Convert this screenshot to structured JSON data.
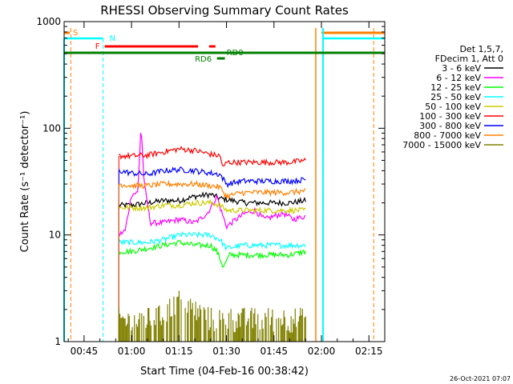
{
  "chart_data": {
    "type": "line",
    "title": "RHESSI Observing Summary Count Rates",
    "xlabel": "Start Time (04-Feb-16 00:38:42)",
    "ylabel": "Count Rate (s⁻¹ detector⁻¹)",
    "y_scale": "log",
    "ylim": [
      1,
      1000
    ],
    "xlim_minutes": [
      38.7,
      140
    ],
    "x_ticks": [
      {
        "m": 45,
        "label": "00:45"
      },
      {
        "m": 60,
        "label": "01:00"
      },
      {
        "m": 75,
        "label": "01:15"
      },
      {
        "m": 90,
        "label": "01:30"
      },
      {
        "m": 105,
        "label": "01:45"
      },
      {
        "m": 120,
        "label": "02:00"
      },
      {
        "m": 135,
        "label": "02:15"
      }
    ],
    "y_ticks": [
      {
        "v": 1,
        "label": "1"
      },
      {
        "v": 10,
        "label": "10"
      },
      {
        "v": 100,
        "label": "100"
      },
      {
        "v": 1000,
        "label": "1000"
      }
    ],
    "legend_header": [
      "Det 1,5,7,",
      "FDecim 1, Att 0"
    ],
    "legend_position": "right",
    "series": [
      {
        "name": "3 - 6 keV",
        "color": "#000000",
        "points": [
          [
            56,
            19
          ],
          [
            60,
            19
          ],
          [
            65,
            20
          ],
          [
            70,
            21
          ],
          [
            75,
            21
          ],
          [
            80,
            23
          ],
          [
            85,
            24
          ],
          [
            88,
            22
          ],
          [
            92,
            21
          ],
          [
            96,
            20
          ],
          [
            100,
            20
          ],
          [
            105,
            20
          ],
          [
            110,
            20
          ],
          [
            115,
            21
          ]
        ]
      },
      {
        "name": "6 - 12 keV",
        "color": "#ff00ff",
        "points": [
          [
            56,
            10
          ],
          [
            58,
            11
          ],
          [
            60,
            24
          ],
          [
            62,
            25
          ],
          [
            63,
            108
          ],
          [
            64,
            30
          ],
          [
            66,
            13
          ],
          [
            70,
            13
          ],
          [
            75,
            14
          ],
          [
            80,
            13
          ],
          [
            84,
            16
          ],
          [
            87,
            23
          ],
          [
            88,
            18
          ],
          [
            90,
            12
          ],
          [
            93,
            14
          ],
          [
            96,
            16
          ],
          [
            99,
            17
          ],
          [
            102,
            14
          ],
          [
            105,
            15
          ],
          [
            108,
            16
          ],
          [
            111,
            14
          ],
          [
            115,
            15
          ]
        ]
      },
      {
        "name": "12 - 25 keV",
        "color": "#00ff00",
        "points": [
          [
            56,
            7
          ],
          [
            60,
            7
          ],
          [
            65,
            7.5
          ],
          [
            70,
            8
          ],
          [
            75,
            8.5
          ],
          [
            80,
            8
          ],
          [
            85,
            8
          ],
          [
            87,
            7
          ],
          [
            89,
            5
          ],
          [
            91,
            6.5
          ],
          [
            95,
            6.5
          ],
          [
            100,
            6.5
          ],
          [
            105,
            6.5
          ],
          [
            110,
            6.5
          ],
          [
            115,
            7
          ]
        ]
      },
      {
        "name": "25 - 50 keV",
        "color": "#00ffff",
        "points": [
          [
            56,
            8.5
          ],
          [
            60,
            8.5
          ],
          [
            65,
            8.5
          ],
          [
            70,
            9
          ],
          [
            75,
            10
          ],
          [
            80,
            10
          ],
          [
            85,
            10
          ],
          [
            88,
            9
          ],
          [
            90,
            7.5
          ],
          [
            95,
            8
          ],
          [
            100,
            8
          ],
          [
            105,
            8
          ],
          [
            110,
            8
          ],
          [
            115,
            8
          ]
        ]
      },
      {
        "name": "50 - 100 keV",
        "color": "#cccc00",
        "points": [
          [
            56,
            18
          ],
          [
            60,
            18
          ],
          [
            65,
            18
          ],
          [
            70,
            19
          ],
          [
            75,
            19
          ],
          [
            80,
            20
          ],
          [
            85,
            20
          ],
          [
            88,
            19
          ],
          [
            90,
            17
          ],
          [
            95,
            17
          ],
          [
            100,
            17
          ],
          [
            105,
            17
          ],
          [
            110,
            17
          ],
          [
            115,
            17
          ]
        ]
      },
      {
        "name": "100 - 300 keV",
        "color": "#ff0000",
        "points": [
          [
            56,
            55
          ],
          [
            60,
            55
          ],
          [
            65,
            56
          ],
          [
            70,
            60
          ],
          [
            75,
            64
          ],
          [
            80,
            62
          ],
          [
            85,
            57
          ],
          [
            88,
            55
          ],
          [
            89,
            42
          ],
          [
            90,
            48
          ],
          [
            95,
            48
          ],
          [
            100,
            48
          ],
          [
            105,
            48
          ],
          [
            110,
            48
          ],
          [
            115,
            50
          ]
        ]
      },
      {
        "name": "300 - 800 keV",
        "color": "#0000ff",
        "points": [
          [
            56,
            40
          ],
          [
            60,
            38
          ],
          [
            65,
            37
          ],
          [
            70,
            40
          ],
          [
            75,
            41
          ],
          [
            80,
            40
          ],
          [
            85,
            38
          ],
          [
            88,
            37
          ],
          [
            90,
            30
          ],
          [
            95,
            32
          ],
          [
            100,
            32
          ],
          [
            105,
            32
          ],
          [
            110,
            32
          ],
          [
            115,
            33
          ]
        ]
      },
      {
        "name": "800 - 7000 keV",
        "color": "#ff8000",
        "points": [
          [
            56,
            30
          ],
          [
            60,
            29
          ],
          [
            65,
            29
          ],
          [
            70,
            30
          ],
          [
            75,
            30
          ],
          [
            80,
            30
          ],
          [
            85,
            29
          ],
          [
            88,
            28
          ],
          [
            90,
            23
          ],
          [
            95,
            25
          ],
          [
            100,
            25
          ],
          [
            105,
            25
          ],
          [
            110,
            25
          ],
          [
            115,
            26
          ]
        ]
      },
      {
        "name": "7000 - 15000 keV",
        "color": "#808000",
        "points": [
          [
            56,
            1.5
          ],
          [
            60,
            1.4
          ],
          [
            65,
            1.5
          ],
          [
            70,
            1.6
          ],
          [
            75,
            2.4
          ],
          [
            80,
            1.8
          ],
          [
            85,
            1.5
          ],
          [
            90,
            1.5
          ],
          [
            95,
            1.5
          ],
          [
            100,
            1.5
          ],
          [
            105,
            1.5
          ],
          [
            110,
            1.5
          ],
          [
            115,
            1.5
          ]
        ]
      }
    ],
    "annotations": {
      "S": {
        "label": "S",
        "color": "#ff8000"
      },
      "N": {
        "label": "N",
        "color": "#00ffff"
      },
      "F": {
        "label": "F",
        "color": "#ff0000"
      },
      "RD0": {
        "label": "RD0",
        "color": "#008000"
      },
      "RD6": {
        "label": "RD6",
        "color": "#008000"
      }
    },
    "timestamp": "26-Oct-2021 07:07"
  }
}
